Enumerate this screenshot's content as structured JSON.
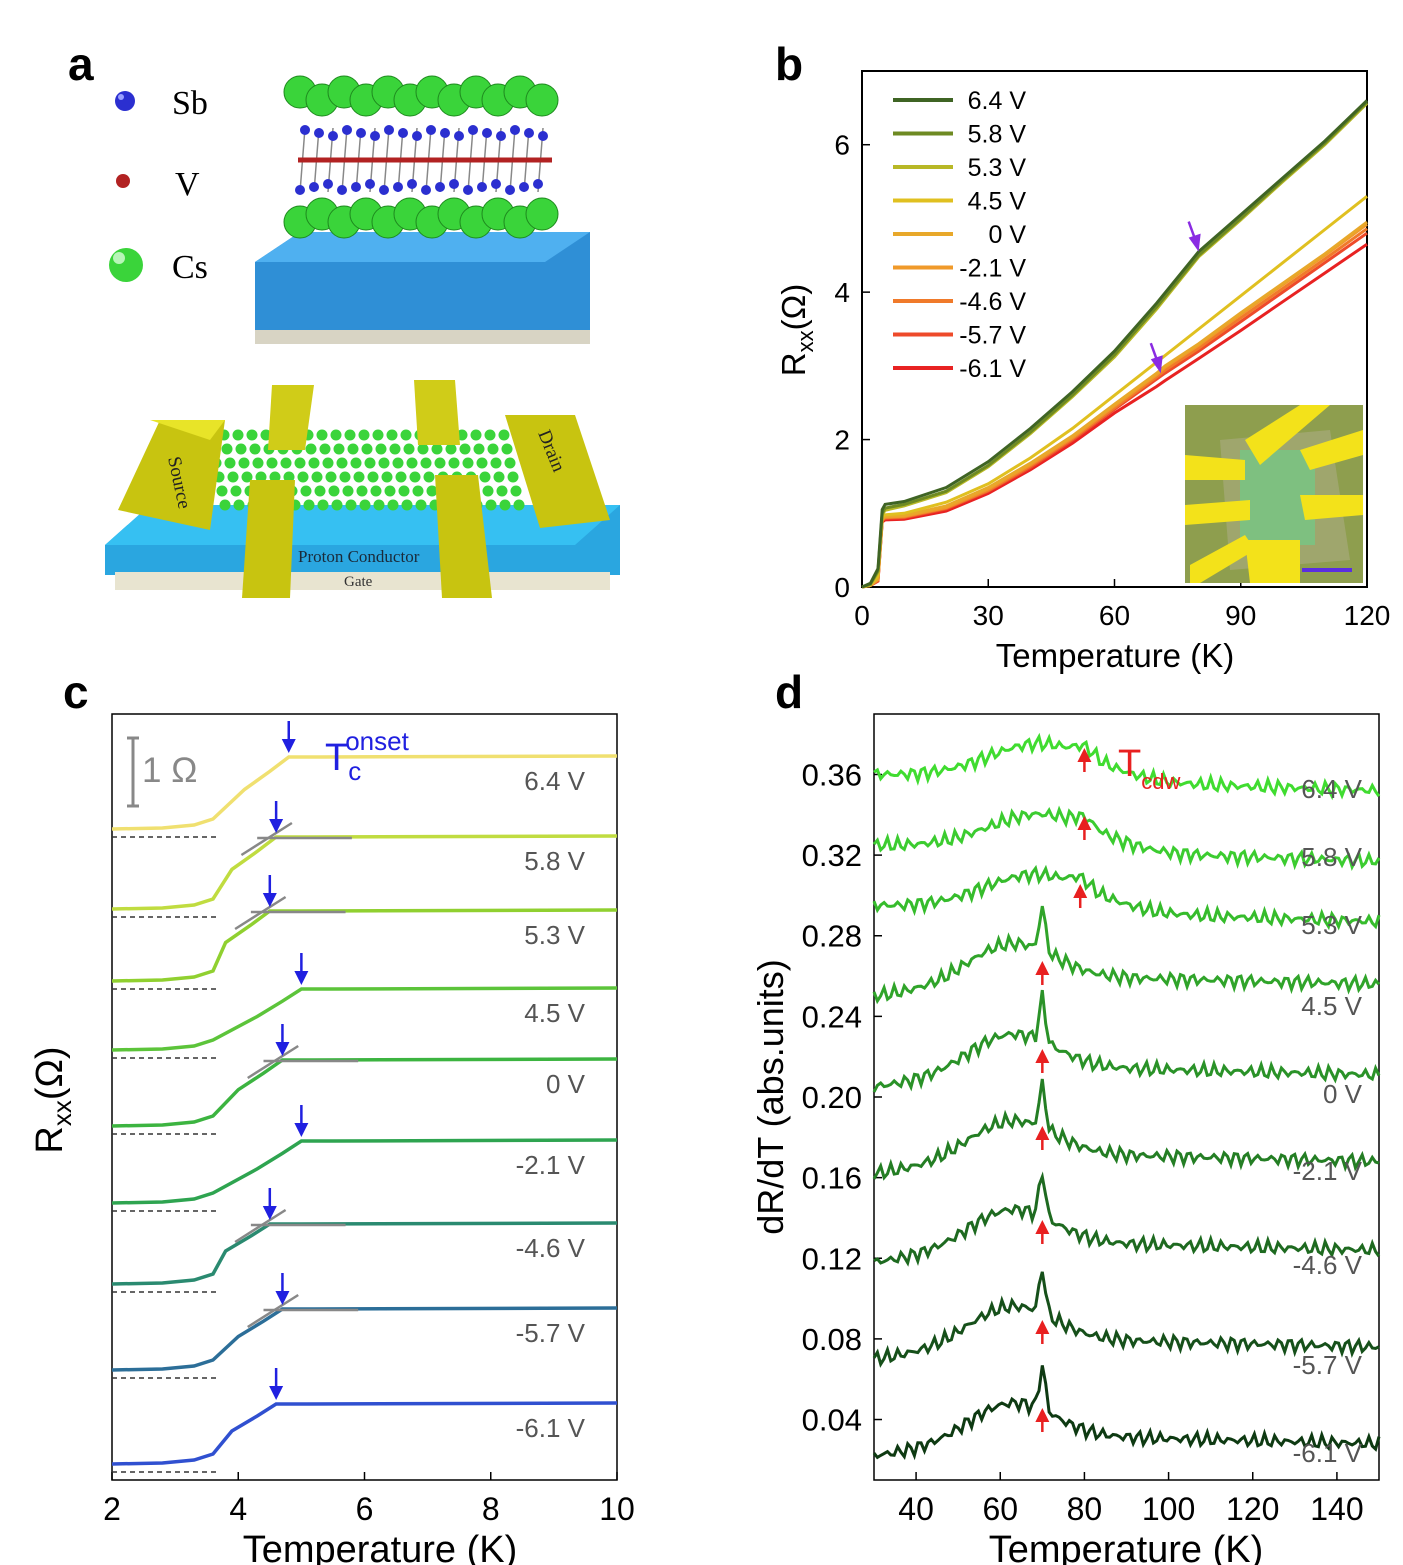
{
  "panels": {
    "a": {
      "letter": "a",
      "legend": [
        {
          "symbol": "Sb",
          "color": "#2b2fd0"
        },
        {
          "symbol": "V",
          "color": "#b22222"
        },
        {
          "symbol": "Cs",
          "color": "#3ad43a"
        }
      ],
      "device": {
        "source": "Source",
        "drain": "Drain",
        "layer": "Proton Conductor",
        "gate": "Gate"
      }
    },
    "b": {
      "letter": "b"
    },
    "c": {
      "letter": "c",
      "scale_label": "1 Ω",
      "tc_main": "T",
      "tc_sub": "c",
      "tc_sup": "onset"
    },
    "d": {
      "letter": "d",
      "cdw_main": "T",
      "cdw_sub": "cdw"
    }
  },
  "chart_data": [
    {
      "id": "b",
      "type": "line",
      "xlabel": "Temperature (K)",
      "ylabel_main": "R",
      "ylabel_sub": "xx",
      "ylabel_tail": "(Ω)",
      "xlim": [
        0,
        120
      ],
      "ylim": [
        0,
        7
      ],
      "xticks": [
        0,
        30,
        60,
        90,
        120
      ],
      "yticks": [
        0,
        2,
        4,
        6
      ],
      "legend_position": "top-left",
      "series": [
        {
          "name": "6.4 V",
          "color": "#3f6424",
          "x": [
            0,
            2,
            3.8,
            4.8,
            5.5,
            10,
            20,
            30,
            40,
            50,
            60,
            70,
            80,
            90,
            100,
            110,
            120
          ],
          "y": [
            0,
            0.05,
            0.25,
            1.05,
            1.12,
            1.16,
            1.35,
            1.7,
            2.15,
            2.65,
            3.2,
            3.85,
            4.55,
            5.05,
            5.55,
            6.05,
            6.6
          ]
        },
        {
          "name": "5.8 V",
          "color": "#6e8a22",
          "x": [
            0,
            2,
            3.8,
            4.8,
            5.5,
            10,
            20,
            30,
            40,
            50,
            60,
            70,
            80,
            90,
            100,
            110,
            120
          ],
          "y": [
            0,
            0.04,
            0.22,
            1.0,
            1.07,
            1.12,
            1.3,
            1.65,
            2.1,
            2.6,
            3.15,
            3.8,
            4.5,
            5.0,
            5.52,
            6.02,
            6.58
          ]
        },
        {
          "name": "5.3 V",
          "color": "#b8b826",
          "x": [
            0,
            2,
            3.8,
            4.8,
            5.5,
            10,
            20,
            30,
            40,
            50,
            60,
            70,
            80,
            90,
            100,
            110,
            120
          ],
          "y": [
            0,
            0.03,
            0.2,
            0.98,
            1.04,
            1.1,
            1.28,
            1.63,
            2.08,
            2.58,
            3.12,
            3.77,
            4.48,
            4.98,
            5.5,
            6.0,
            6.56
          ]
        },
        {
          "name": "4.5 V",
          "color": "#e0c020",
          "x": [
            0,
            2,
            3.8,
            4.8,
            5.5,
            10,
            20,
            30,
            40,
            50,
            60,
            70,
            80,
            90,
            100,
            110,
            120
          ],
          "y": [
            0,
            0.03,
            0.15,
            0.95,
            0.98,
            1.0,
            1.15,
            1.4,
            1.75,
            2.15,
            2.6,
            3.05,
            3.5,
            3.95,
            4.4,
            4.85,
            5.3
          ]
        },
        {
          "name": "0 V",
          "color": "#e8a82a",
          "x": [
            0,
            2,
            3.8,
            4.8,
            5.5,
            10,
            20,
            30,
            40,
            50,
            60,
            70,
            72,
            80,
            90,
            100,
            110,
            120
          ],
          "y": [
            0,
            0.02,
            0.12,
            0.93,
            0.96,
            0.97,
            1.1,
            1.35,
            1.68,
            2.05,
            2.48,
            2.9,
            3.0,
            3.3,
            3.72,
            4.12,
            4.52,
            4.95
          ]
        },
        {
          "name": "-2.1 V",
          "color": "#f09a2a",
          "x": [
            0,
            2,
            3.8,
            4.8,
            5.5,
            10,
            20,
            30,
            40,
            50,
            60,
            70,
            72,
            80,
            90,
            100,
            110,
            120
          ],
          "y": [
            0,
            0.02,
            0.1,
            0.92,
            0.95,
            0.96,
            1.08,
            1.33,
            1.66,
            2.03,
            2.46,
            2.88,
            2.98,
            3.28,
            3.7,
            4.1,
            4.5,
            4.92
          ]
        },
        {
          "name": "-4.6 V",
          "color": "#f07a2a",
          "x": [
            0,
            2,
            3.8,
            4.8,
            5.5,
            10,
            20,
            30,
            40,
            50,
            60,
            70,
            72,
            80,
            90,
            100,
            110,
            120
          ],
          "y": [
            0,
            0.02,
            0.1,
            0.91,
            0.94,
            0.95,
            1.07,
            1.31,
            1.64,
            2.01,
            2.43,
            2.85,
            2.94,
            3.24,
            3.65,
            4.05,
            4.45,
            4.86
          ]
        },
        {
          "name": "-5.7 V",
          "color": "#ee4a2a",
          "x": [
            0,
            2,
            3.8,
            4.8,
            5.5,
            10,
            20,
            30,
            40,
            50,
            60,
            70,
            72,
            80,
            90,
            100,
            110,
            120
          ],
          "y": [
            0,
            0.02,
            0.08,
            0.9,
            0.93,
            0.94,
            1.06,
            1.3,
            1.62,
            1.99,
            2.41,
            2.82,
            2.9,
            3.2,
            3.6,
            4.0,
            4.4,
            4.8
          ]
        },
        {
          "name": "-6.1 V",
          "color": "#e82222",
          "x": [
            0,
            2,
            3.8,
            4.8,
            5.5,
            10,
            20,
            30,
            40,
            50,
            60,
            70,
            72,
            80,
            90,
            100,
            110,
            120
          ],
          "y": [
            0,
            0.02,
            0.08,
            0.88,
            0.91,
            0.92,
            1.03,
            1.27,
            1.59,
            1.95,
            2.36,
            2.72,
            2.8,
            3.1,
            3.48,
            3.87,
            4.26,
            4.65
          ]
        }
      ],
      "arrows": [
        {
          "x": 80,
          "y": 4.55
        },
        {
          "x": 71,
          "y": 2.9
        }
      ],
      "inset": "optical image of device"
    },
    {
      "id": "c",
      "type": "line",
      "xlabel": "Temperature (K)",
      "ylabel_main": "R",
      "ylabel_sub": "xx",
      "ylabel_tail": "(Ω)",
      "xlim": [
        2,
        10
      ],
      "xticks": [
        2,
        4,
        6,
        8,
        10
      ],
      "offset_curves": [
        {
          "label": "6.4 V",
          "color": "#f0e070",
          "onset": 4.8
        },
        {
          "label": "5.8 V",
          "color": "#c0dc40",
          "onset": 4.6
        },
        {
          "label": "5.3 V",
          "color": "#90d030",
          "onset": 4.5
        },
        {
          "label": "4.5 V",
          "color": "#5cc43a",
          "onset": 5.0
        },
        {
          "label": "0 V",
          "color": "#3cb440",
          "onset": 4.7
        },
        {
          "label": "-2.1 V",
          "color": "#2ea450",
          "onset": 5.0
        },
        {
          "label": "-4.6 V",
          "color": "#2a8a70",
          "onset": 4.5
        },
        {
          "label": "-5.7 V",
          "color": "#2c6e98",
          "onset": 4.7
        },
        {
          "label": "-6.1 V",
          "color": "#3050d0",
          "onset": 4.6
        }
      ]
    },
    {
      "id": "d",
      "type": "line",
      "xlabel": "Temperature (K)",
      "ylabel": "dR/dT (abs.units)",
      "xlim": [
        30,
        150
      ],
      "ylim": [
        0.01,
        0.39
      ],
      "xticks": [
        40,
        60,
        80,
        100,
        120,
        140
      ],
      "yticks": [
        0.04,
        0.08,
        0.12,
        0.16,
        0.2,
        0.24,
        0.28,
        0.32,
        0.36
      ],
      "series": [
        {
          "name": "6.4 V",
          "color": "#40dc30",
          "base": 0.36,
          "peak_x": 80,
          "kind": "broad"
        },
        {
          "name": "5.8 V",
          "color": "#3ccc30",
          "base": 0.325,
          "peak_x": 80,
          "kind": "broad"
        },
        {
          "name": "5.3 V",
          "color": "#36bc2c",
          "base": 0.295,
          "peak_x": 79,
          "kind": "broad"
        },
        {
          "name": "4.5 V",
          "color": "#30a42a",
          "base": 0.25,
          "peak_x": 70,
          "kind": "sharp"
        },
        {
          "name": "0 V",
          "color": "#2a9228",
          "base": 0.205,
          "peak_x": 70,
          "kind": "sharp"
        },
        {
          "name": "-2.1 V",
          "color": "#247e24",
          "base": 0.162,
          "peak_x": 70,
          "kind": "sharp"
        },
        {
          "name": "-4.6 V",
          "color": "#1e6a20",
          "base": 0.118,
          "peak_x": 70,
          "kind": "sharp"
        },
        {
          "name": "-5.7 V",
          "color": "#16501a",
          "base": 0.07,
          "peak_x": 70,
          "kind": "sharp"
        },
        {
          "name": "-6.1 V",
          "color": "#0e3a12",
          "base": 0.022,
          "peak_x": 70,
          "kind": "sharp"
        }
      ]
    }
  ]
}
